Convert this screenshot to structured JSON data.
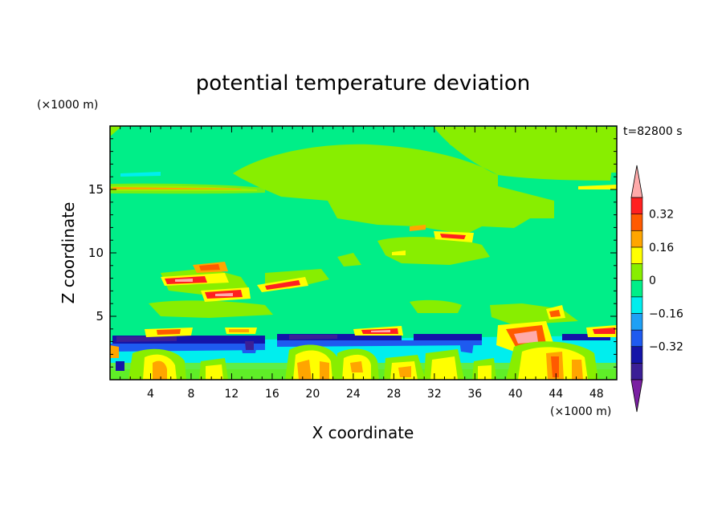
{
  "chart_data": {
    "type": "heatmap",
    "title": "potential temperature deviation",
    "time_label": "t=82800 s",
    "xlabel": "X coordinate",
    "ylabel": "Z coordinate",
    "x_unit": "(×1000 m)",
    "y_unit": "(×1000 m)",
    "xlim": [
      0,
      50
    ],
    "ylim": [
      0,
      20
    ],
    "x_ticks": [
      4,
      8,
      12,
      16,
      20,
      24,
      28,
      32,
      36,
      40,
      44,
      48
    ],
    "y_ticks": [
      5,
      10,
      15
    ],
    "colorbar": {
      "labels": [
        "0.32",
        "0.16",
        "0",
        "−0.16",
        "−0.32"
      ],
      "levels": [
        -0.48,
        -0.4,
        -0.32,
        -0.24,
        -0.16,
        -0.08,
        0,
        0.08,
        0.16,
        0.24,
        0.32,
        0.4
      ],
      "colors": [
        "#7a1fa2",
        "#3b1f96",
        "#1414a8",
        "#1e5af0",
        "#1ea0f5",
        "#00eeee",
        "#00ee88",
        "#88ee00",
        "#ffff00",
        "#ffa500",
        "#ff5a00",
        "#ff2020",
        "#ffaaaa"
      ],
      "extend": "both"
    },
    "regions": {
      "background": "0 to 0.08 (near-neutral, green)",
      "upper_layer": "slightly positive band at z≈12–18 km, central x≈18–36 km",
      "tropopause_line": "thin positive streak at z≈15 km",
      "lower_cold_band": "strong negative band at z≈3–4 km",
      "boundary_layer": "mixed positive/negative cells below z≈3 km"
    }
  }
}
